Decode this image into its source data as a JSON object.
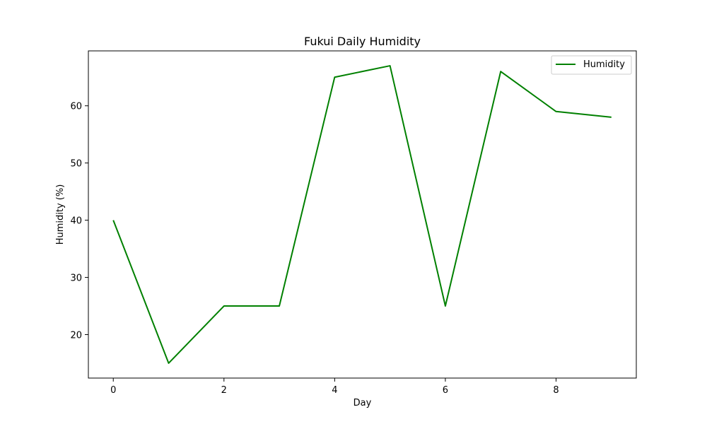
{
  "chart_data": {
    "type": "line",
    "title": "Fukui Daily Humidity",
    "xlabel": "Day",
    "ylabel": "Humidity (%)",
    "x": [
      0,
      1,
      2,
      3,
      4,
      5,
      6,
      7,
      8,
      9
    ],
    "series": [
      {
        "name": "Humidity",
        "color": "#008000",
        "values": [
          40,
          15,
          25,
          25,
          65,
          67,
          25,
          66,
          59,
          58
        ]
      }
    ],
    "xlim": [
      -0.45,
      9.45
    ],
    "ylim": [
      12.4,
      69.6
    ],
    "xticks": [
      0,
      2,
      4,
      6,
      8
    ],
    "yticks": [
      20,
      30,
      40,
      50,
      60
    ],
    "legend_position": "top-right",
    "grid": false
  }
}
